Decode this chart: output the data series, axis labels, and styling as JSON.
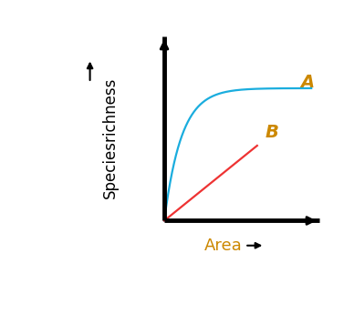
{
  "title": "",
  "xlabel": "Area",
  "ylabel": "Speciesrichness",
  "curve_A_color": "#1AADDE",
  "curve_B_color": "#EE3333",
  "label_A": "A",
  "label_B": "B",
  "label_color": "#CC8800",
  "background_color": "#FFFFFF",
  "axis_color": "#000000",
  "label_fontsize": 14,
  "axis_label_fontsize": 13,
  "ylabel_fontsize": 12,
  "curve_linewidth": 1.6,
  "axis_linewidth": 3.5,
  "xlim": [
    0,
    10
  ],
  "ylim": [
    0,
    10
  ]
}
